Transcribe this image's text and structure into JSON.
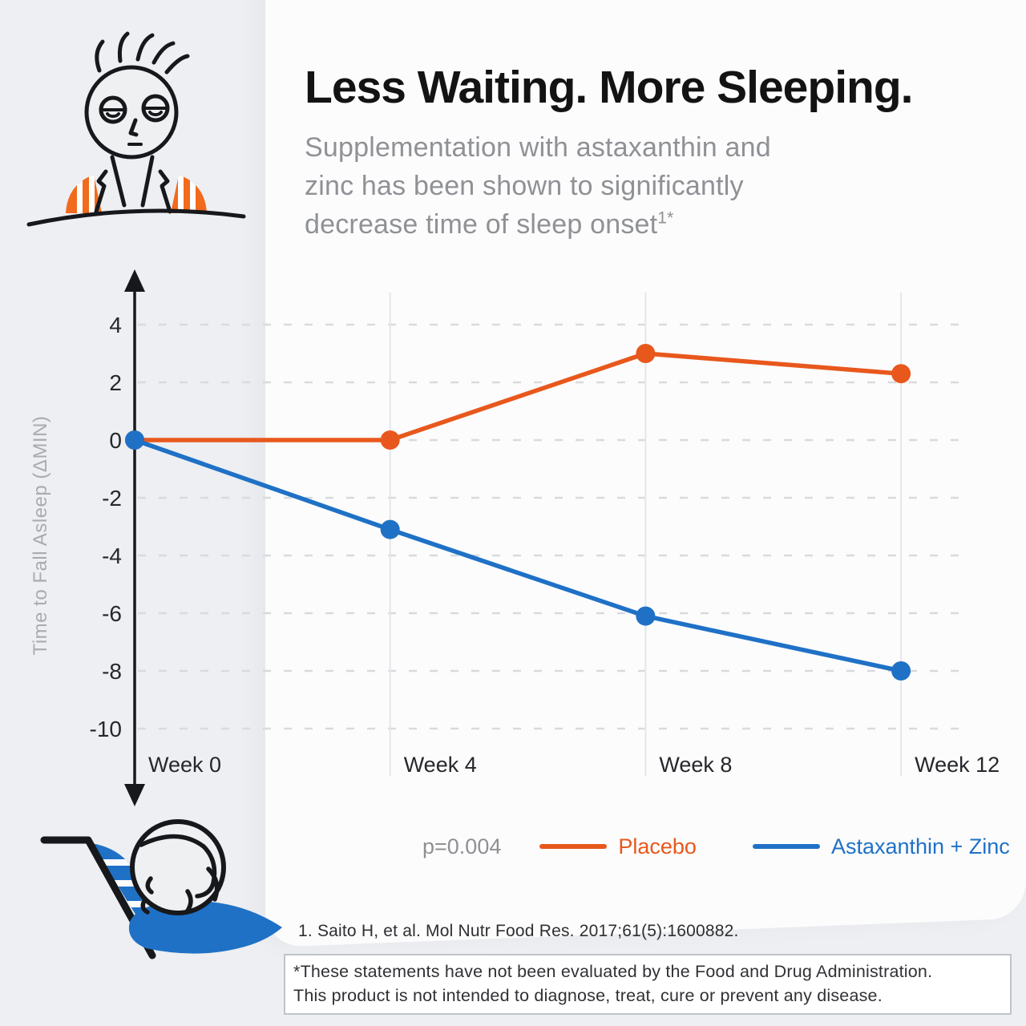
{
  "header": {
    "title": "Less Waiting. More Sleeping.",
    "subtitle_line1": "Supplementation with astaxanthin and",
    "subtitle_line2": "zinc has been shown to significantly",
    "subtitle_line3": "decrease time of sleep onset",
    "subtitle_superscript": "1*"
  },
  "chart_data": {
    "type": "line",
    "title": "",
    "categories": [
      "Week 0",
      "Week 4",
      "Week 8",
      "Week 12"
    ],
    "series": [
      {
        "name": "Placebo",
        "color": "#E8581C",
        "values": [
          0,
          0,
          3,
          2.3
        ]
      },
      {
        "name": "Astaxanthin + Zinc",
        "color": "#1F71C6",
        "values": [
          0,
          -3.1,
          -6.1,
          -8
        ]
      }
    ],
    "xlabel": "",
    "ylabel": "Time to Fall Asleep (ΔMIN)",
    "yticks": [
      4,
      2,
      0,
      -2,
      -4,
      -6,
      -8,
      -10
    ],
    "ylim": [
      -11,
      5.5
    ],
    "annotation": "p=0.004",
    "grid": "dashed-horizontal-with-vertical-category-lines",
    "legend_position": "bottom"
  },
  "footnote": {
    "citation": "1. Saito H, et al. Mol Nutr Food Res. 2017;61(5):1600882."
  },
  "disclaimer": {
    "line1": "*These statements have not been evaluated by the Food and Drug Administration.",
    "line2": "This product is not intended to diagnose, treat, cure or prevent any disease."
  },
  "icons": {
    "top_left": "tired-person-icon",
    "bottom_left": "sleeping-person-icon"
  },
  "colors": {
    "orange": "#E8581C",
    "blue": "#1F71C6",
    "background_gray": "#edeff2",
    "panel_white": "#fcfcfd",
    "title_text": "#131313",
    "muted_text": "#8f9195"
  }
}
